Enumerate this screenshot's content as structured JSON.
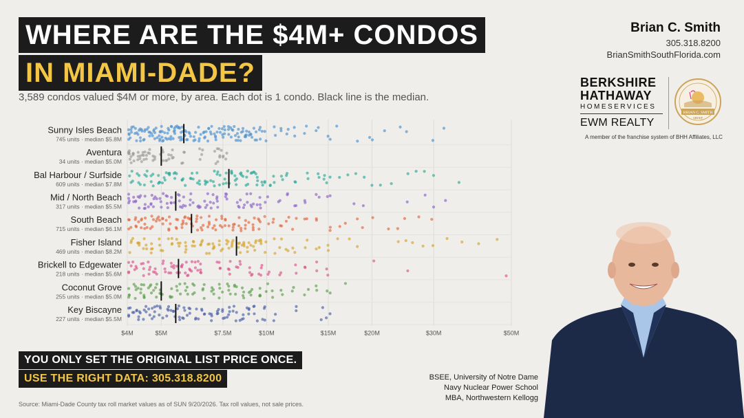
{
  "header": {
    "title_line1": "WHERE ARE THE $4M+ CONDOS",
    "title_line2": "IN MIAMI-DADE?",
    "subtitle": "3,589 condos valued $4M or more, by area. Each dot is 1 condo. Black line is the median."
  },
  "contact": {
    "name": "Brian C. Smith",
    "phone": "305.318.8200",
    "website": "BrianSmithSouthFlorida.com"
  },
  "brand": {
    "line1": "BERKSHIRE",
    "line2": "HATHAWAY",
    "line3": "HOMESERVICES",
    "line4": "EWM REALTY",
    "member_note": "A member of the franchise system of BHH Affiliates, LLC",
    "seal_text": "BRIAN C. SMITH",
    "seal_sub": "GROUP",
    "seal_color": "#c9a45a"
  },
  "chart_data": {
    "type": "scatter",
    "x_scale": "log",
    "x_unit": "USD millions",
    "xlim": [
      4,
      50
    ],
    "x_ticks": [
      4,
      5,
      7.5,
      10,
      15,
      20,
      30,
      50
    ],
    "x_tick_labels": [
      "$4M",
      "$5M",
      "$7.5M",
      "$10M",
      "$15M",
      "$20M",
      "$30M",
      "$50M"
    ],
    "grid": true,
    "areas": [
      {
        "name": "Sunny Isles Beach",
        "units": 745,
        "median": 5.8,
        "units_label": "745 units",
        "median_label": "median $5.8M",
        "color": "#4a90d0",
        "values": [
          4.05,
          4.1,
          4.2,
          4.3,
          4.4,
          4.5,
          4.6,
          4.7,
          4.8,
          4.9,
          5.0,
          5.1,
          5.2,
          5.3,
          5.4,
          5.5,
          5.6,
          5.7,
          5.8,
          5.9,
          6.0,
          6.2,
          6.4,
          6.6,
          6.8,
          7.0,
          7.2,
          7.4,
          7.6,
          7.8,
          8.0,
          8.2,
          8.4,
          8.6,
          8.8,
          9.0,
          9.3,
          9.6,
          10.0,
          10.5,
          11.0,
          11.5,
          12,
          13,
          14,
          15,
          16,
          18,
          19.5,
          20,
          22,
          24,
          25,
          30,
          32
        ]
      },
      {
        "name": "Aventura",
        "units": 34,
        "median": 5.0,
        "units_label": "34 units",
        "median_label": "median $5.0M",
        "color": "#999999",
        "values": [
          4.05,
          4.1,
          4.2,
          4.3,
          4.4,
          4.5,
          4.6,
          4.8,
          5.0,
          5.2,
          5.4,
          5.8,
          6.5,
          7.2,
          7.4,
          7.6
        ]
      },
      {
        "name": "Bal Harbour / Surfside",
        "units": 609,
        "median": 7.8,
        "units_label": "609 units",
        "median_label": "median $7.8M",
        "color": "#2aa99a",
        "values": [
          4.1,
          4.3,
          4.5,
          4.7,
          4.9,
          5.1,
          5.3,
          5.5,
          5.8,
          6.1,
          6.4,
          6.7,
          7.0,
          7.3,
          7.6,
          7.9,
          8.2,
          8.5,
          8.8,
          9.1,
          9.4,
          9.8,
          10.2,
          10.6,
          11,
          11.5,
          12,
          13,
          14,
          14.5,
          15,
          16,
          17,
          18,
          19,
          20,
          21,
          23,
          25,
          27,
          28,
          30,
          35
        ]
      },
      {
        "name": "Mid / North Beach",
        "units": 317,
        "median": 5.5,
        "units_label": "317 units",
        "median_label": "median $5.5M",
        "color": "#8a63c7",
        "values": [
          4.05,
          4.2,
          4.35,
          4.5,
          4.65,
          4.8,
          5.0,
          5.2,
          5.4,
          5.6,
          5.8,
          6.1,
          6.4,
          6.7,
          7.0,
          7.3,
          7.6,
          8.3,
          8.7,
          9.1,
          9.5,
          10.0,
          10.8,
          11.5,
          12,
          13,
          14,
          15,
          18,
          19,
          25,
          28,
          30,
          32
        ]
      },
      {
        "name": "South Beach",
        "units": 715,
        "median": 6.1,
        "units_label": "715 units",
        "median_label": "median $6.1M",
        "color": "#e2643c",
        "values": [
          4.05,
          4.2,
          4.35,
          4.5,
          4.7,
          4.9,
          5.1,
          5.3,
          5.5,
          5.7,
          5.9,
          6.1,
          6.3,
          6.5,
          6.8,
          7.1,
          7.4,
          7.7,
          8.0,
          8.4,
          8.8,
          9.2,
          9.6,
          10.0,
          10.5,
          11,
          11.5,
          12,
          13,
          14,
          15,
          16,
          17,
          18,
          19,
          20,
          22,
          24,
          25,
          27,
          30
        ]
      },
      {
        "name": "Fisher Island",
        "units": 469,
        "median": 8.2,
        "units_label": "469 units",
        "median_label": "median $8.2M",
        "color": "#d4a32a",
        "values": [
          4.1,
          4.3,
          4.5,
          4.7,
          5.0,
          5.3,
          5.6,
          5.9,
          6.2,
          6.5,
          6.8,
          7.1,
          7.4,
          7.7,
          8.0,
          8.3,
          8.6,
          8.9,
          9.2,
          9.6,
          10.0,
          10.5,
          11,
          11.5,
          12,
          13,
          14,
          15,
          16,
          17,
          18,
          24,
          25,
          26,
          28,
          30,
          33,
          36,
          40,
          45
        ]
      },
      {
        "name": "Brickell to Edgewater",
        "units": 218,
        "median": 5.6,
        "units_label": "218 units",
        "median_label": "median $5.6M",
        "color": "#d9558c",
        "values": [
          4.05,
          4.2,
          4.4,
          4.6,
          4.8,
          5.1,
          5.3,
          5.5,
          5.7,
          5.9,
          6.1,
          6.3,
          6.5,
          7.3,
          7.8,
          8.3,
          9.0,
          9.6,
          10.2,
          11,
          12,
          13,
          14,
          15,
          20,
          25,
          48
        ]
      },
      {
        "name": "Coconut Grove",
        "units": 255,
        "median": 5.0,
        "units_label": "255 units",
        "median_label": "median $5.0M",
        "color": "#5a9e4c",
        "values": [
          4.05,
          4.2,
          4.35,
          4.5,
          4.65,
          4.8,
          5.0,
          5.3,
          5.6,
          5.9,
          6.2,
          6.6,
          7.0,
          7.4,
          7.8,
          8.2,
          8.6,
          9.0,
          9.5,
          10.0,
          10.5,
          11,
          12,
          13,
          14,
          15,
          17
        ]
      },
      {
        "name": "Key Biscayne",
        "units": 227,
        "median": 5.5,
        "units_label": "227 units",
        "median_label": "median $5.5M",
        "color": "#4a5fa8",
        "values": [
          4.05,
          4.2,
          4.35,
          4.5,
          4.65,
          4.8,
          5.0,
          5.2,
          5.4,
          5.6,
          5.8,
          6.0,
          6.3,
          6.6,
          6.9,
          7.2,
          7.5,
          7.8,
          8.1,
          8.5,
          8.9,
          9.3,
          9.8,
          10.5,
          12,
          14.5,
          15
        ]
      }
    ]
  },
  "cta": {
    "line1": "YOU ONLY SET THE ORIGINAL LIST PRICE ONCE.",
    "line2": "USE THE RIGHT DATA: 305.318.8200"
  },
  "source": "Source: Miami-Dade County tax roll market values as of SUN 9/20/2026. Tax roll values, not sale prices.",
  "credentials": [
    "BSEE, University of Notre Dame",
    "Navy Nuclear Power School",
    "MBA, Northwestern Kellogg"
  ],
  "photo": {
    "suit_color": "#1c2a48",
    "shirt_color": "#a9c6e8",
    "skin_color": "#e7b89c"
  }
}
